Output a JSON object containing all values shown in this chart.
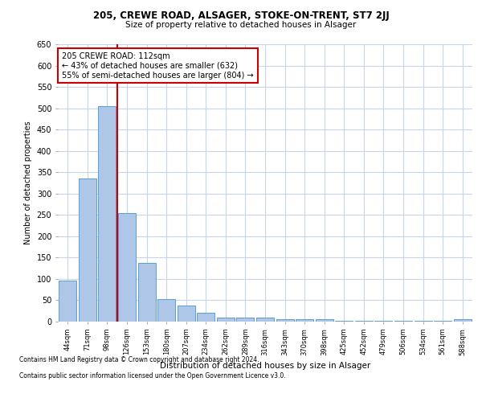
{
  "title1": "205, CREWE ROAD, ALSAGER, STOKE-ON-TRENT, ST7 2JJ",
  "title2": "Size of property relative to detached houses in Alsager",
  "xlabel": "Distribution of detached houses by size in Alsager",
  "ylabel": "Number of detached properties",
  "categories": [
    "44sqm",
    "71sqm",
    "98sqm",
    "126sqm",
    "153sqm",
    "180sqm",
    "207sqm",
    "234sqm",
    "262sqm",
    "289sqm",
    "316sqm",
    "343sqm",
    "370sqm",
    "398sqm",
    "425sqm",
    "452sqm",
    "479sqm",
    "506sqm",
    "534sqm",
    "561sqm",
    "588sqm"
  ],
  "values": [
    97,
    335,
    505,
    255,
    137,
    52,
    37,
    21,
    10,
    10,
    10,
    5,
    5,
    5,
    2,
    2,
    1,
    1,
    1,
    1,
    5
  ],
  "bar_color": "#aec6e8",
  "bar_edge_color": "#5a9fd4",
  "background_color": "#ffffff",
  "grid_color": "#c8d4e8",
  "annotation_text": "205 CREWE ROAD: 112sqm\n← 43% of detached houses are smaller (632)\n55% of semi-detached houses are larger (804) →",
  "annotation_box_color": "#ffffff",
  "annotation_box_edge": "#cc0000",
  "vline_x": 2.5,
  "vline_color": "#cc0000",
  "ylim": [
    0,
    650
  ],
  "yticks": [
    0,
    50,
    100,
    150,
    200,
    250,
    300,
    350,
    400,
    450,
    500,
    550,
    600,
    650
  ],
  "footnote1": "Contains HM Land Registry data © Crown copyright and database right 2024.",
  "footnote2": "Contains public sector information licensed under the Open Government Licence v3.0."
}
